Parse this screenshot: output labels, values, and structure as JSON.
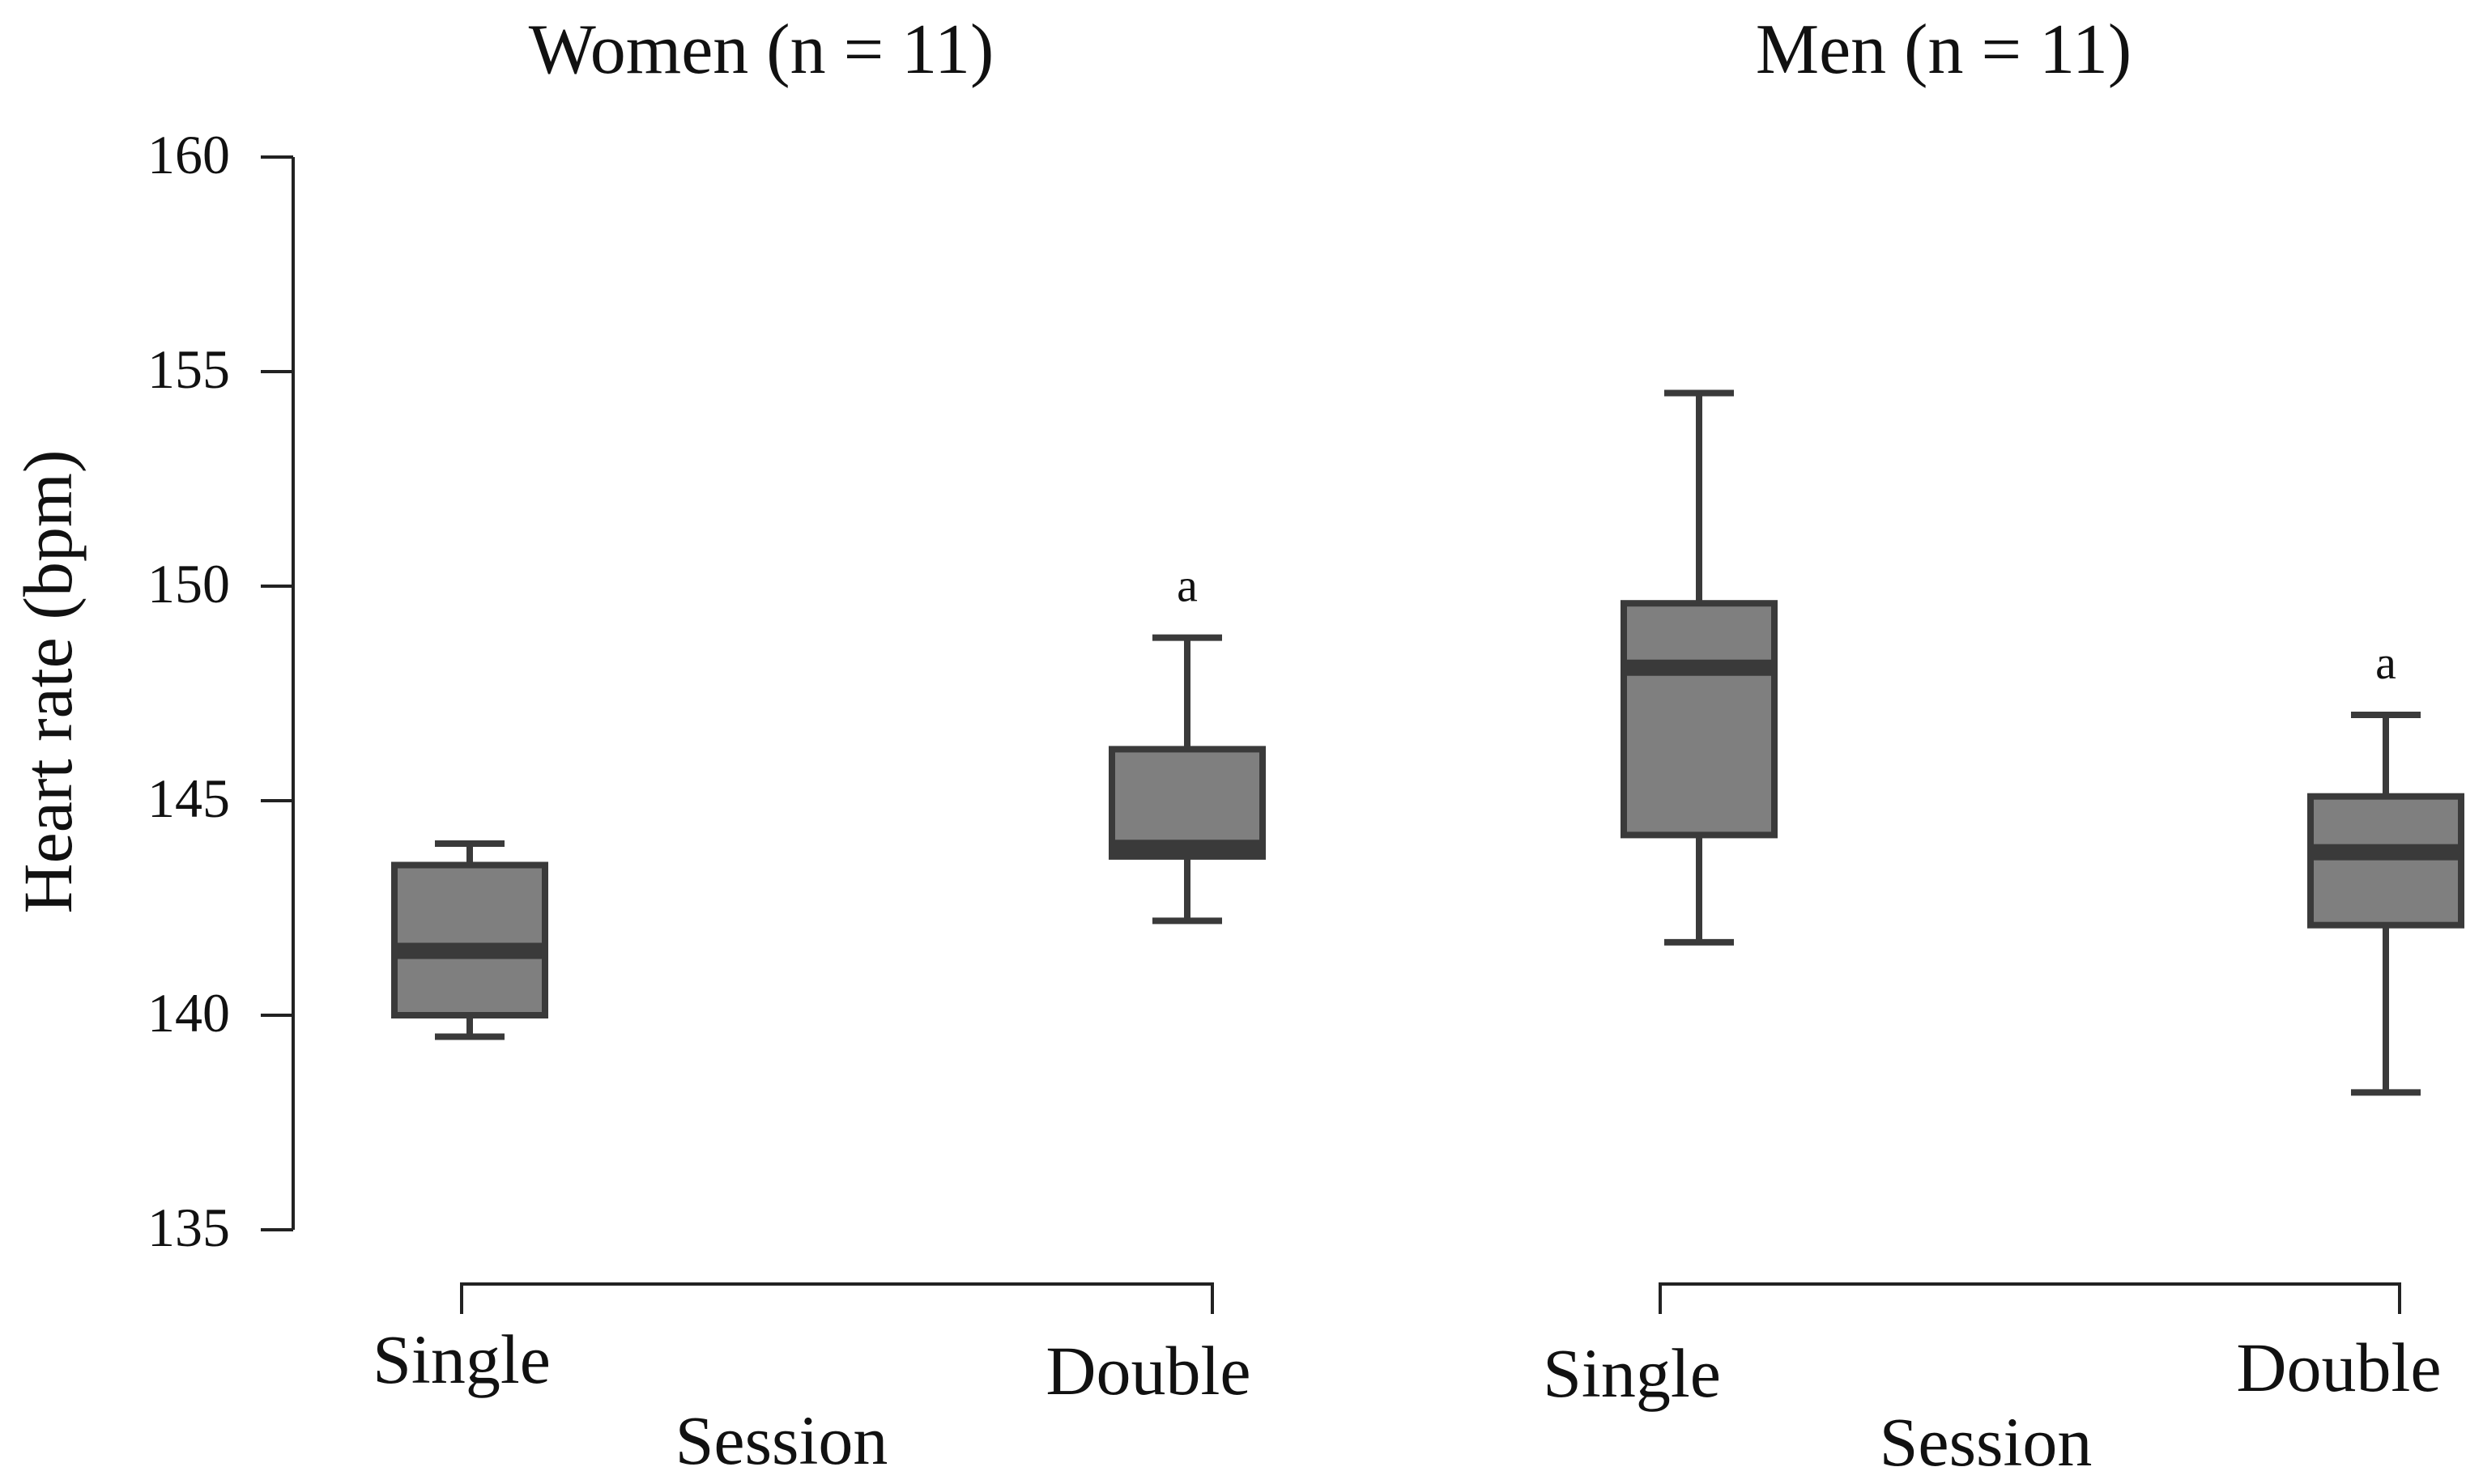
{
  "chart_data": {
    "type": "boxplot",
    "ylabel": "Heart rate  (bpm)",
    "ylim": [
      135,
      160
    ],
    "yticks": [
      135,
      140,
      145,
      150,
      155,
      160
    ],
    "colors": {
      "box_fill": "#7f7f7f",
      "box_stroke": "#3a3a3a",
      "axis": "#222222",
      "text": "#111111"
    },
    "panels": [
      {
        "title": "Women (n = 11)",
        "xlabel": "Session",
        "groups": [
          {
            "category": "Single",
            "whisker_low": 139.5,
            "q1": 140.0,
            "median": 141.5,
            "q3": 143.5,
            "whisker_high": 144.0,
            "annotation": ""
          },
          {
            "category": "Double",
            "whisker_low": 142.2,
            "q1": 143.7,
            "median": 143.9,
            "q3": 146.2,
            "whisker_high": 148.8,
            "annotation": "a"
          }
        ]
      },
      {
        "title": "Men (n = 11)",
        "xlabel": "Session",
        "groups": [
          {
            "category": "Single",
            "whisker_low": 141.7,
            "q1": 144.2,
            "median": 148.1,
            "q3": 149.6,
            "whisker_high": 154.5,
            "annotation": ""
          },
          {
            "category": "Double",
            "whisker_low": 138.2,
            "q1": 142.1,
            "median": 143.8,
            "q3": 145.1,
            "whisker_high": 147.0,
            "annotation": "a"
          }
        ]
      }
    ]
  }
}
